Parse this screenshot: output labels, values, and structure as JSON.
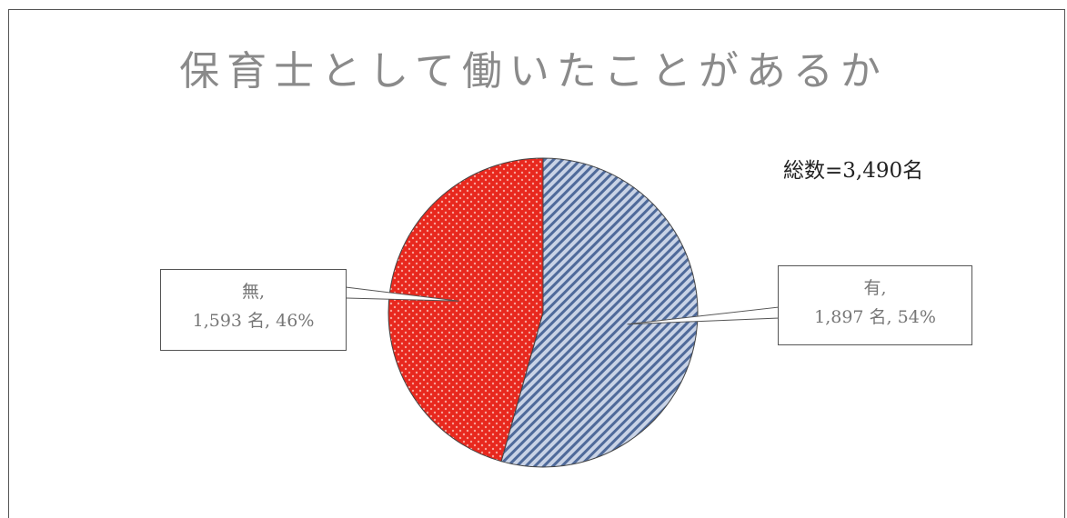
{
  "chart_data": {
    "type": "pie",
    "title": "保育士として働いたことがあるか",
    "total_label": "総数=3,490名",
    "slices": [
      {
        "name": "有",
        "count": 1897,
        "percent": 54,
        "label_name": "有,",
        "label_value": "1,897 名, 54%",
        "color": "#c9d3e6",
        "pattern": "diagonal-stripes",
        "pattern_color": "#4f6a9a"
      },
      {
        "name": "無",
        "count": 1593,
        "percent": 46,
        "label_name": "無,",
        "label_value": "1,593 名, 46%",
        "color": "#e8281e",
        "pattern": "dots",
        "pattern_color": "#f6a39a"
      }
    ],
    "legend": "none"
  }
}
